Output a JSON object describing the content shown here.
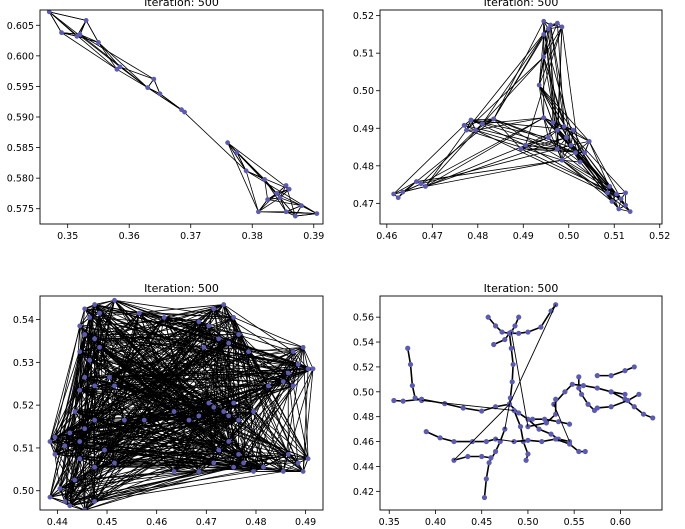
{
  "figure": {
    "node_color": "#5b5bb5",
    "edge_color": "#000000"
  },
  "chart_data": [
    {
      "type": "scatter",
      "title": "Iteration: 500",
      "xlim": [
        0.3455,
        0.3915
      ],
      "ylim": [
        0.5725,
        0.6075
      ],
      "xticks": [
        0.35,
        0.36,
        0.37,
        0.38,
        0.39
      ],
      "yticks": [
        0.575,
        0.58,
        0.585,
        0.59,
        0.595,
        0.6,
        0.605
      ],
      "xtick_labels": [
        "0.35",
        "0.36",
        "0.37",
        "0.38",
        "0.39"
      ],
      "ytick_labels": [
        "0.575",
        "0.580",
        "0.585",
        "0.590",
        "0.595",
        "0.600",
        "0.605"
      ],
      "grid": false,
      "nodes": [
        [
          0.347,
          0.6072
        ],
        [
          0.353,
          0.6058
        ],
        [
          0.349,
          0.6038
        ],
        [
          0.352,
          0.6035
        ],
        [
          0.355,
          0.6022
        ],
        [
          0.3515,
          0.6032
        ],
        [
          0.3585,
          0.5982
        ],
        [
          0.358,
          0.5978
        ],
        [
          0.364,
          0.5962
        ],
        [
          0.363,
          0.5948
        ],
        [
          0.365,
          0.5938
        ],
        [
          0.369,
          0.5908
        ],
        [
          0.3685,
          0.5912
        ],
        [
          0.376,
          0.5858
        ],
        [
          0.3775,
          0.5842
        ],
        [
          0.379,
          0.5812
        ],
        [
          0.382,
          0.5798
        ],
        [
          0.3855,
          0.5788
        ],
        [
          0.384,
          0.5775
        ],
        [
          0.3845,
          0.5768
        ],
        [
          0.386,
          0.5782
        ],
        [
          0.3825,
          0.5765
        ],
        [
          0.388,
          0.5755
        ],
        [
          0.387,
          0.5738
        ],
        [
          0.3905,
          0.5742
        ],
        [
          0.381,
          0.5745
        ],
        [
          0.3855,
          0.5745
        ]
      ]
    },
    {
      "type": "scatter",
      "title": "Iteration: 500",
      "xlim": [
        0.4585,
        0.5205
      ],
      "ylim": [
        0.4645,
        0.5215
      ],
      "xticks": [
        0.46,
        0.47,
        0.48,
        0.49,
        0.5,
        0.51,
        0.52
      ],
      "yticks": [
        0.47,
        0.48,
        0.49,
        0.5,
        0.51,
        0.52
      ],
      "xtick_labels": [
        "0.46",
        "0.47",
        "0.48",
        "0.49",
        "0.50",
        "0.51",
        "0.52"
      ],
      "ytick_labels": [
        "0.47",
        "0.48",
        "0.49",
        "0.50",
        "0.51",
        "0.52"
      ],
      "grid": false,
      "nodes": [
        [
          0.4945,
          0.5185
        ],
        [
          0.496,
          0.5175
        ],
        [
          0.4975,
          0.518
        ],
        [
          0.4955,
          0.5165
        ],
        [
          0.4985,
          0.517
        ],
        [
          0.4945,
          0.515
        ],
        [
          0.4945,
          0.509
        ],
        [
          0.4935,
          0.5015
        ],
        [
          0.4895,
          0.4845
        ],
        [
          0.4905,
          0.4855
        ],
        [
          0.4785,
          0.4922
        ],
        [
          0.477,
          0.4908
        ],
        [
          0.4795,
          0.4895
        ],
        [
          0.481,
          0.4912
        ],
        [
          0.4775,
          0.4895
        ],
        [
          0.4835,
          0.4925
        ],
        [
          0.4945,
          0.4928
        ],
        [
          0.4965,
          0.4915
        ],
        [
          0.4975,
          0.4895
        ],
        [
          0.499,
          0.4905
        ],
        [
          0.501,
          0.4895
        ],
        [
          0.4995,
          0.4875
        ],
        [
          0.5005,
          0.4855
        ],
        [
          0.4975,
          0.4845
        ],
        [
          0.5015,
          0.4835
        ],
        [
          0.4985,
          0.4815
        ],
        [
          0.5035,
          0.4835
        ],
        [
          0.5025,
          0.481
        ],
        [
          0.4955,
          0.4875
        ],
        [
          0.5045,
          0.4865
        ],
        [
          0.509,
          0.4745
        ],
        [
          0.5105,
          0.4725
        ],
        [
          0.5095,
          0.4705
        ],
        [
          0.5115,
          0.4712
        ],
        [
          0.5125,
          0.4695
        ],
        [
          0.511,
          0.4685
        ],
        [
          0.5135,
          0.4678
        ],
        [
          0.5085,
          0.4728
        ],
        [
          0.5125,
          0.4728
        ],
        [
          0.4615,
          0.4725
        ],
        [
          0.4635,
          0.473
        ],
        [
          0.4625,
          0.4715
        ],
        [
          0.4675,
          0.4752
        ],
        [
          0.4665,
          0.4758
        ],
        [
          0.4685,
          0.4745
        ]
      ]
    },
    {
      "type": "scatter",
      "title": "Iteration: 500",
      "xlim": [
        0.4365,
        0.4935
      ],
      "ylim": [
        0.4955,
        0.5455
      ],
      "xticks": [
        0.44,
        0.45,
        0.46,
        0.47,
        0.48,
        0.49
      ],
      "yticks": [
        0.5,
        0.51,
        0.52,
        0.53,
        0.54
      ],
      "xtick_labels": [
        "0.44",
        "0.45",
        "0.46",
        "0.47",
        "0.48",
        "0.49"
      ],
      "ytick_labels": [
        "0.50",
        "0.51",
        "0.52",
        "0.53",
        "0.54"
      ],
      "grid": false,
      "nodes": [
        [
          0.4455,
          0.5425
        ],
        [
          0.4475,
          0.5435
        ],
        [
          0.4465,
          0.5405
        ],
        [
          0.4485,
          0.5415
        ],
        [
          0.4445,
          0.5385
        ],
        [
          0.4455,
          0.5365
        ],
        [
          0.4475,
          0.5355
        ],
        [
          0.4445,
          0.5325
        ],
        [
          0.4485,
          0.5335
        ],
        [
          0.4465,
          0.5305
        ],
        [
          0.4455,
          0.5265
        ],
        [
          0.4475,
          0.5245
        ],
        [
          0.4445,
          0.5235
        ],
        [
          0.4505,
          0.5265
        ],
        [
          0.4515,
          0.5245
        ],
        [
          0.4435,
          0.5185
        ],
        [
          0.4475,
          0.5165
        ],
        [
          0.4455,
          0.5145
        ],
        [
          0.4395,
          0.5125
        ],
        [
          0.4385,
          0.5115
        ],
        [
          0.4425,
          0.5135
        ],
        [
          0.4415,
          0.5105
        ],
        [
          0.4395,
          0.5085
        ],
        [
          0.4445,
          0.5115
        ],
        [
          0.4535,
          0.5165
        ],
        [
          0.4575,
          0.5165
        ],
        [
          0.4495,
          0.5095
        ],
        [
          0.4515,
          0.5065
        ],
        [
          0.4445,
          0.5075
        ],
        [
          0.4475,
          0.5055
        ],
        [
          0.4435,
          0.5025
        ],
        [
          0.4405,
          0.5005
        ],
        [
          0.4385,
          0.4985
        ],
        [
          0.4425,
          0.4965
        ],
        [
          0.4455,
          0.4955
        ],
        [
          0.4475,
          0.4975
        ],
        [
          0.4415,
          0.4975
        ],
        [
          0.4515,
          0.5445
        ],
        [
          0.4565,
          0.5415
        ],
        [
          0.4615,
          0.5405
        ],
        [
          0.4685,
          0.5395
        ],
        [
          0.4715,
          0.5425
        ],
        [
          0.4735,
          0.5435
        ],
        [
          0.4755,
          0.5405
        ],
        [
          0.4705,
          0.5385
        ],
        [
          0.4725,
          0.5355
        ],
        [
          0.4765,
          0.5365
        ],
        [
          0.4745,
          0.5345
        ],
        [
          0.4695,
          0.5335
        ],
        [
          0.4785,
          0.5325
        ],
        [
          0.4705,
          0.5205
        ],
        [
          0.4715,
          0.5195
        ],
        [
          0.4735,
          0.5185
        ],
        [
          0.4755,
          0.5205
        ],
        [
          0.4745,
          0.5175
        ],
        [
          0.4765,
          0.5165
        ],
        [
          0.4685,
          0.5175
        ],
        [
          0.4635,
          0.5185
        ],
        [
          0.4665,
          0.5165
        ],
        [
          0.4795,
          0.5185
        ],
        [
          0.4855,
          0.5255
        ],
        [
          0.4865,
          0.5275
        ],
        [
          0.4885,
          0.5295
        ],
        [
          0.4905,
          0.5285
        ],
        [
          0.4875,
          0.5325
        ],
        [
          0.4895,
          0.5335
        ],
        [
          0.4915,
          0.5285
        ],
        [
          0.4875,
          0.5245
        ],
        [
          0.4825,
          0.5245
        ],
        [
          0.4885,
          0.5065
        ],
        [
          0.4865,
          0.5085
        ],
        [
          0.4905,
          0.5075
        ],
        [
          0.4895,
          0.5045
        ],
        [
          0.4855,
          0.5045
        ],
        [
          0.4815,
          0.5055
        ],
        [
          0.4795,
          0.5045
        ],
        [
          0.4775,
          0.5065
        ],
        [
          0.4755,
          0.5055
        ],
        [
          0.4715,
          0.5065
        ],
        [
          0.4685,
          0.5045
        ],
        [
          0.4635,
          0.5045
        ],
        [
          0.4725,
          0.5095
        ],
        [
          0.4745,
          0.5115
        ],
        [
          0.4765,
          0.5085
        ]
      ]
    },
    {
      "type": "scatter",
      "title": "Iteration: 500",
      "xlim": [
        0.34,
        0.645
      ],
      "ylim": [
        0.405,
        0.577
      ],
      "xticks": [
        0.35,
        0.4,
        0.45,
        0.5,
        0.55,
        0.6
      ],
      "yticks": [
        0.42,
        0.44,
        0.46,
        0.48,
        0.5,
        0.52,
        0.54,
        0.56
      ],
      "xtick_labels": [
        "0.35",
        "0.40",
        "0.45",
        "0.50",
        "0.55",
        "0.60"
      ],
      "ytick_labels": [
        "0.42",
        "0.44",
        "0.46",
        "0.48",
        "0.50",
        "0.52",
        "0.54",
        "0.56"
      ],
      "grid": false,
      "paths": [
        [
          [
            0.355,
            0.493
          ],
          [
            0.365,
            0.4925
          ],
          [
            0.385,
            0.494
          ],
          [
            0.41,
            0.4905
          ],
          [
            0.43,
            0.487
          ],
          [
            0.45,
            0.4845
          ],
          [
            0.465,
            0.488
          ],
          [
            0.48,
            0.49
          ]
        ],
        [
          [
            0.37,
            0.535
          ],
          [
            0.373,
            0.522
          ],
          [
            0.375,
            0.505
          ],
          [
            0.378,
            0.495
          ],
          [
            0.385,
            0.493
          ]
        ],
        [
          [
            0.48,
            0.547
          ],
          [
            0.482,
            0.535
          ],
          [
            0.484,
            0.522
          ],
          [
            0.483,
            0.508
          ],
          [
            0.481,
            0.495
          ],
          [
            0.48,
            0.49
          ]
        ],
        [
          [
            0.457,
            0.56
          ],
          [
            0.465,
            0.553
          ],
          [
            0.472,
            0.548
          ],
          [
            0.48,
            0.547
          ],
          [
            0.49,
            0.547
          ],
          [
            0.5,
            0.548
          ],
          [
            0.514,
            0.552
          ],
          [
            0.525,
            0.565
          ],
          [
            0.53,
            0.57
          ]
        ],
        [
          [
            0.463,
            0.538
          ],
          [
            0.475,
            0.542
          ],
          [
            0.48,
            0.547
          ]
        ],
        [
          [
            0.49,
            0.56
          ],
          [
            0.486,
            0.553
          ],
          [
            0.482,
            0.548
          ]
        ],
        [
          [
            0.48,
            0.49
          ],
          [
            0.49,
            0.483
          ],
          [
            0.5,
            0.478
          ],
          [
            0.512,
            0.47
          ],
          [
            0.525,
            0.466
          ],
          [
            0.533,
            0.462
          ],
          [
            0.545,
            0.46
          ]
        ],
        [
          [
            0.485,
            0.485
          ],
          [
            0.492,
            0.472
          ],
          [
            0.495,
            0.46
          ],
          [
            0.5,
            0.45
          ],
          [
            0.498,
            0.445
          ]
        ],
        [
          [
            0.475,
            0.47
          ],
          [
            0.47,
            0.46
          ],
          [
            0.465,
            0.452
          ],
          [
            0.458,
            0.443
          ],
          [
            0.455,
            0.43
          ],
          [
            0.453,
            0.415
          ]
        ],
        [
          [
            0.39,
            0.468
          ],
          [
            0.405,
            0.463
          ],
          [
            0.42,
            0.46
          ],
          [
            0.44,
            0.46
          ],
          [
            0.455,
            0.46
          ],
          [
            0.465,
            0.462
          ]
        ],
        [
          [
            0.42,
            0.445
          ],
          [
            0.435,
            0.448
          ],
          [
            0.45,
            0.448
          ],
          [
            0.46,
            0.447
          ]
        ],
        [
          [
            0.485,
            0.46
          ],
          [
            0.5,
            0.461
          ],
          [
            0.515,
            0.46
          ],
          [
            0.53,
            0.462
          ],
          [
            0.545,
            0.458
          ],
          [
            0.555,
            0.452
          ],
          [
            0.562,
            0.452
          ]
        ],
        [
          [
            0.528,
            0.49
          ],
          [
            0.54,
            0.5
          ],
          [
            0.548,
            0.506
          ],
          [
            0.56,
            0.505
          ],
          [
            0.575,
            0.503
          ],
          [
            0.59,
            0.5
          ],
          [
            0.605,
            0.498
          ]
        ],
        [
          [
            0.555,
            0.512
          ],
          [
            0.555,
            0.503
          ],
          [
            0.558,
            0.498
          ],
          [
            0.565,
            0.49
          ],
          [
            0.572,
            0.485
          ]
        ],
        [
          [
            0.59,
            0.5
          ],
          [
            0.605,
            0.494
          ],
          [
            0.615,
            0.488
          ],
          [
            0.625,
            0.482
          ],
          [
            0.635,
            0.479
          ]
        ],
        [
          [
            0.575,
            0.487
          ],
          [
            0.59,
            0.488
          ],
          [
            0.608,
            0.493
          ],
          [
            0.62,
            0.498
          ]
        ],
        [
          [
            0.575,
            0.513
          ],
          [
            0.59,
            0.513
          ],
          [
            0.605,
            0.517
          ],
          [
            0.615,
            0.52
          ]
        ],
        [
          [
            0.5,
            0.472
          ],
          [
            0.52,
            0.475
          ],
          [
            0.53,
            0.482
          ],
          [
            0.53,
            0.494
          ]
        ],
        [
          [
            0.505,
            0.478
          ],
          [
            0.518,
            0.478
          ],
          [
            0.533,
            0.476
          ],
          [
            0.545,
            0.474
          ]
        ]
      ]
    }
  ]
}
